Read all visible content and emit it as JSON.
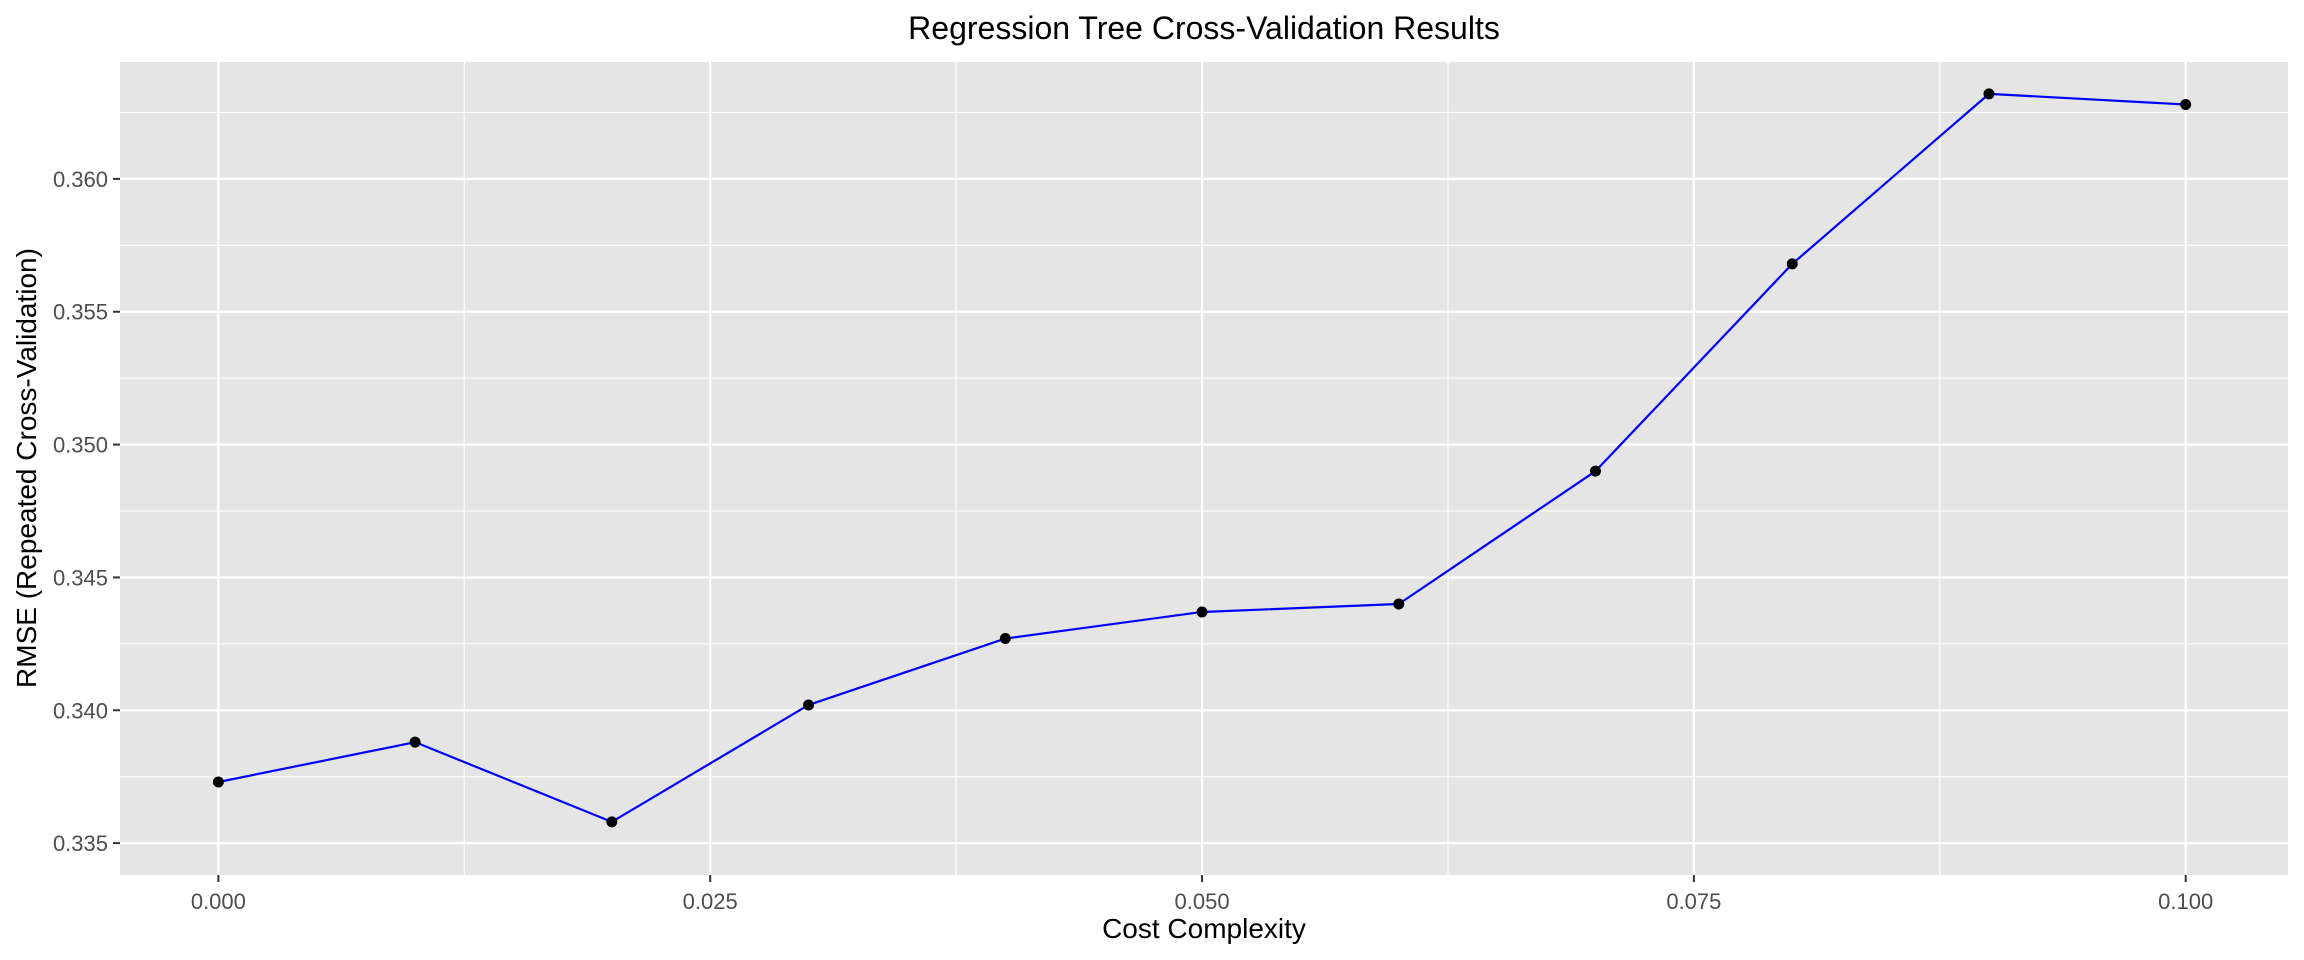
{
  "chart_data": {
    "type": "line",
    "title": "Regression Tree Cross-Validation Results",
    "xlabel": "Cost Complexity",
    "ylabel": "RMSE (Repeated Cross-Validation)",
    "xlim": [
      -0.005,
      0.1052
    ],
    "ylim": [
      0.3338,
      0.3644
    ],
    "x_ticks": [
      0.0,
      0.025,
      0.05,
      0.075,
      0.1
    ],
    "x_tick_labels": [
      "0.000",
      "0.025",
      "0.050",
      "0.075",
      "0.100"
    ],
    "y_ticks": [
      0.335,
      0.34,
      0.345,
      0.35,
      0.355,
      0.36
    ],
    "y_tick_labels": [
      "0.335",
      "0.340",
      "0.345",
      "0.350",
      "0.355",
      "0.360"
    ],
    "grid": true,
    "line_color": "#0000ff",
    "point_color": "#000000",
    "panel_color": "#e5e5e5",
    "series": [
      {
        "x": [
          0.0,
          0.01,
          0.02,
          0.03,
          0.04,
          0.05,
          0.06,
          0.07,
          0.08,
          0.09,
          0.1
        ],
        "values": [
          0.3373,
          0.3388,
          0.3358,
          0.3402,
          0.3427,
          0.3437,
          0.344,
          0.349,
          0.3568,
          0.3632,
          0.3628
        ]
      }
    ]
  }
}
